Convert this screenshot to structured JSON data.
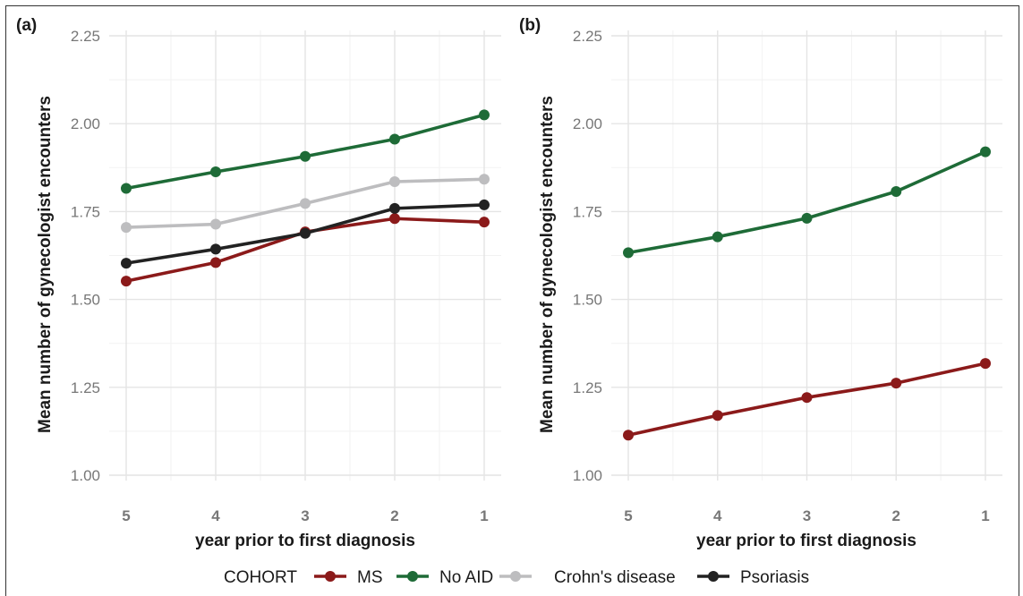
{
  "chart_data": [
    {
      "type": "line",
      "panel_label": "(a)",
      "xlabel": "year prior to first diagnosis",
      "ylabel": "Mean number of gynecologist encounters",
      "categories": [
        "5",
        "4",
        "3",
        "2",
        "1"
      ],
      "ylim": [
        1.0,
        2.25
      ],
      "yticks": [
        "1.00",
        "1.25",
        "1.50",
        "1.75",
        "2.00",
        "2.25"
      ],
      "grid": true,
      "series": [
        {
          "name": "MS",
          "color": "#8b1a1a",
          "values": [
            1.552,
            1.605,
            1.692,
            1.73,
            1.72
          ]
        },
        {
          "name": "No AID",
          "color": "#1e6b37",
          "values": [
            1.816,
            1.863,
            1.907,
            1.956,
            2.025
          ]
        },
        {
          "name": "Crohn's disease",
          "color": "#bdbdbf",
          "values": [
            1.705,
            1.714,
            1.773,
            1.835,
            1.842
          ]
        },
        {
          "name": "Psoriasis",
          "color": "#222222",
          "values": [
            1.603,
            1.643,
            1.688,
            1.759,
            1.769
          ]
        }
      ]
    },
    {
      "type": "line",
      "panel_label": "(b)",
      "xlabel": "year prior to first diagnosis",
      "ylabel": "Mean number of gynecologist encounters",
      "categories": [
        "5",
        "4",
        "3",
        "2",
        "1"
      ],
      "ylim": [
        1.0,
        2.25
      ],
      "yticks": [
        "1.00",
        "1.25",
        "1.50",
        "1.75",
        "2.00",
        "2.25"
      ],
      "grid": true,
      "series": [
        {
          "name": "MS",
          "color": "#8b1a1a",
          "values": [
            1.114,
            1.17,
            1.221,
            1.262,
            1.318
          ]
        },
        {
          "name": "No AID",
          "color": "#1e6b37",
          "values": [
            1.633,
            1.678,
            1.731,
            1.807,
            1.92
          ]
        }
      ]
    }
  ],
  "legend": {
    "title": "COHORT",
    "position": "bottom",
    "items": [
      {
        "label": "MS",
        "color": "#8b1a1a"
      },
      {
        "label": "No AID",
        "color": "#1e6b37"
      },
      {
        "label": "Crohn's disease",
        "color": "#bdbdbf"
      },
      {
        "label": "Psoriasis",
        "color": "#222222"
      }
    ]
  }
}
